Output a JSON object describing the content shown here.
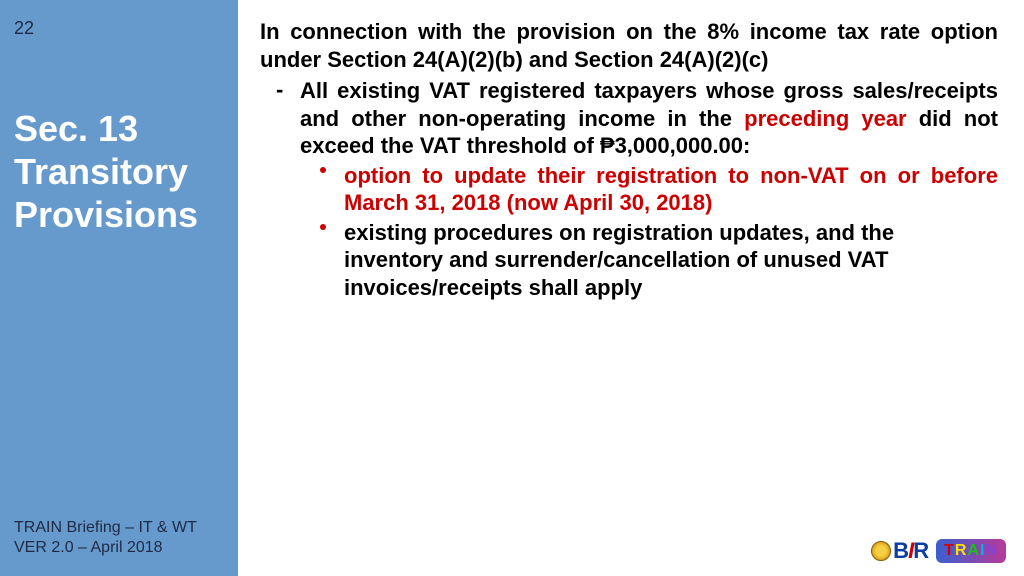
{
  "slide_number": "22",
  "sidebar_title": "Sec. 13 Transitory Provisions",
  "intro": "In connection with the provision on the 8% income tax rate option under Section 24(A)(2)(b) and Section 24(A)(2)(c)",
  "level1": {
    "pre": "All existing VAT registered taxpayers whose gross sales/receipts and other non-operating income in the ",
    "highlight": "preceding year",
    "post": " did not exceed the VAT threshold of ₱3,000,000.00:"
  },
  "bullets": [
    "option to update their registration to non-VAT on or before March 31, 2018 (now April 30, 2018)",
    "existing procedures on registration updates, and the inventory and  surrender/cancellation of unused VAT invoices/receipts shall apply"
  ],
  "footer": {
    "line1": "TRAIN Briefing – IT & WT",
    "line2": "VER 2.0 – April 2018"
  },
  "logos": {
    "bir": {
      "b": "B",
      "i": "I",
      "r": "R"
    },
    "train": {
      "t": "T",
      "r": "R",
      "a": "A",
      "i": "I",
      "n": "N"
    }
  },
  "colors": {
    "sidebar_bg": "#6699cc",
    "highlight_red": "#cc0000",
    "text_black": "#000000",
    "footer_text": "#1f2a44"
  }
}
